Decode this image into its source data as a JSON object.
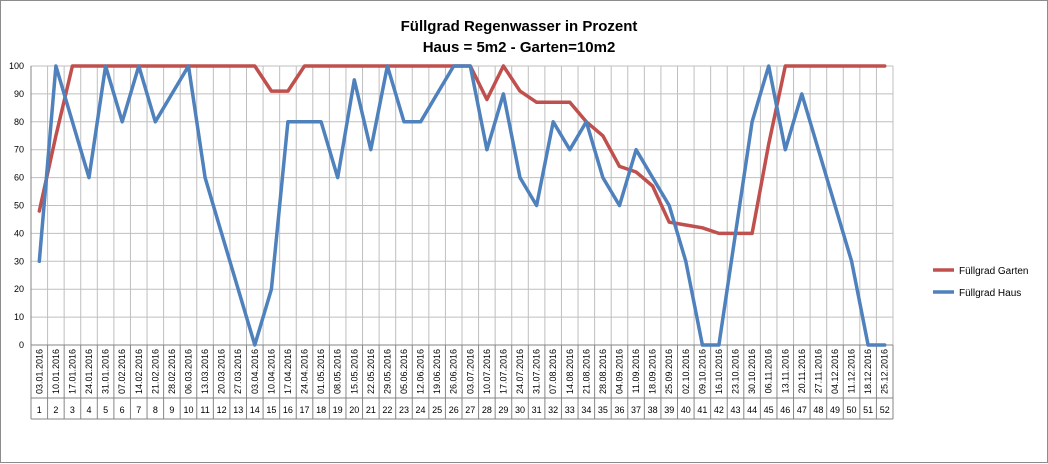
{
  "chart_data": {
    "type": "line",
    "title": "Füllgrad Regenwasser in Prozent",
    "subtitle": "Haus = 5m2 - Garten=10m2",
    "xlabel": "",
    "ylabel": "",
    "ylim": [
      0,
      100
    ],
    "yticks": [
      0,
      10,
      20,
      30,
      40,
      50,
      60,
      70,
      80,
      90,
      100
    ],
    "grid": true,
    "legend": "right",
    "dates": [
      "03.01.2016",
      "10.01.2016",
      "17.01.2016",
      "24.01.2016",
      "31.01.2016",
      "07.02.2016",
      "14.02.2016",
      "21.02.2016",
      "28.02.2016",
      "06.03.2016",
      "13.03.2016",
      "20.03.2016",
      "27.03.2016",
      "03.04.2016",
      "10.04.2016",
      "17.04.2016",
      "24.04.2016",
      "01.05.2016",
      "08.05.2016",
      "15.05.2016",
      "22.05.2016",
      "29.05.2016",
      "05.06.2016",
      "12.06.2016",
      "19.06.2016",
      "26.06.2016",
      "03.07.2016",
      "10.07.2016",
      "17.07.2016",
      "24.07.2016",
      "31.07.2016",
      "07.08.2016",
      "14.08.2016",
      "21.08.2016",
      "28.08.2016",
      "04.09.2016",
      "11.09.2016",
      "18.09.2016",
      "25.09.2016",
      "02.10.2016",
      "09.10.2016",
      "16.10.2016",
      "23.10.2016",
      "30.10.2016",
      "06.11.2016",
      "13.11.2016",
      "20.11.2016",
      "27.11.2016",
      "04.12.2016",
      "11.12.2016",
      "18.12.2016",
      "25.12.2016"
    ],
    "weeks": [
      "1",
      "2",
      "3",
      "4",
      "5",
      "6",
      "7",
      "8",
      "9",
      "10",
      "11",
      "12",
      "13",
      "14",
      "15",
      "16",
      "17",
      "18",
      "19",
      "20",
      "21",
      "22",
      "23",
      "24",
      "25",
      "26",
      "27",
      "28",
      "29",
      "30",
      "31",
      "32",
      "33",
      "34",
      "35",
      "36",
      "37",
      "38",
      "39",
      "40",
      "41",
      "42",
      "43",
      "44",
      "45",
      "46",
      "47",
      "48",
      "49",
      "50",
      "51",
      "52"
    ],
    "series": [
      {
        "name": "Füllgrad Garten",
        "color": "#c0504d",
        "values": [
          48,
          75,
          100,
          100,
          100,
          100,
          100,
          100,
          100,
          100,
          100,
          100,
          100,
          100,
          91,
          91,
          100,
          100,
          100,
          100,
          100,
          100,
          100,
          100,
          100,
          100,
          100,
          88,
          100,
          91,
          87,
          87,
          87,
          80,
          75,
          64,
          62,
          57,
          44,
          43,
          42,
          40,
          40,
          40,
          72,
          100,
          100,
          100,
          100,
          100,
          100,
          100
        ]
      },
      {
        "name": "Füllgrad Haus",
        "color": "#4f81bd",
        "values": [
          30,
          100,
          80,
          60,
          100,
          80,
          100,
          80,
          90,
          100,
          60,
          40,
          20,
          0,
          20,
          80,
          80,
          80,
          60,
          95,
          70,
          100,
          80,
          80,
          90,
          100,
          100,
          70,
          90,
          60,
          50,
          80,
          70,
          80,
          60,
          50,
          70,
          60,
          50,
          30,
          0,
          0,
          40,
          80,
          100,
          70,
          90,
          70,
          50,
          30,
          0,
          0
        ]
      }
    ]
  }
}
